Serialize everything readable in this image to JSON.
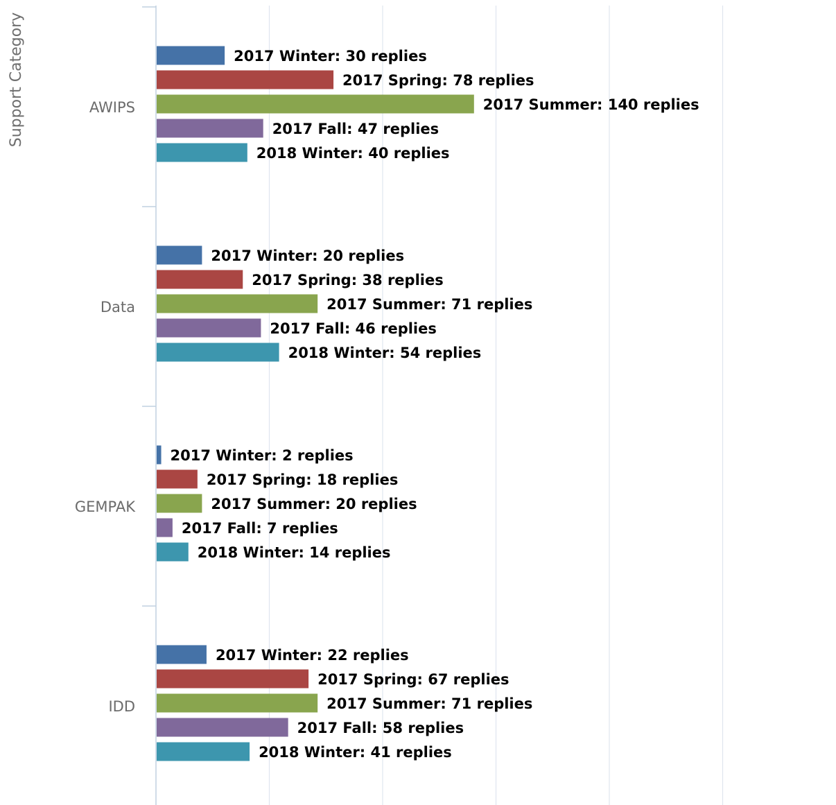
{
  "chart_data": {
    "type": "bar",
    "orientation": "horizontal",
    "ylabel": "Support Category",
    "xlabel": "",
    "categories": [
      "AWIPS",
      "Data",
      "GEMPAK",
      "IDD"
    ],
    "unit_suffix": "replies",
    "xlim": [
      0,
      160
    ],
    "grid": true,
    "legend": "none",
    "series": [
      {
        "name": "2017 Winter",
        "color": "#4572a7",
        "values": [
          30,
          20,
          2,
          22
        ]
      },
      {
        "name": "2017 Spring",
        "color": "#aa4643",
        "values": [
          78,
          38,
          18,
          67
        ]
      },
      {
        "name": "2017 Summer",
        "color": "#89a54e",
        "values": [
          140,
          71,
          20,
          71
        ]
      },
      {
        "name": "2017 Fall",
        "color": "#80699b",
        "values": [
          47,
          46,
          7,
          58
        ]
      },
      {
        "name": "2018 Winter",
        "color": "#3d96ae",
        "values": [
          40,
          54,
          14,
          41
        ]
      }
    ]
  }
}
